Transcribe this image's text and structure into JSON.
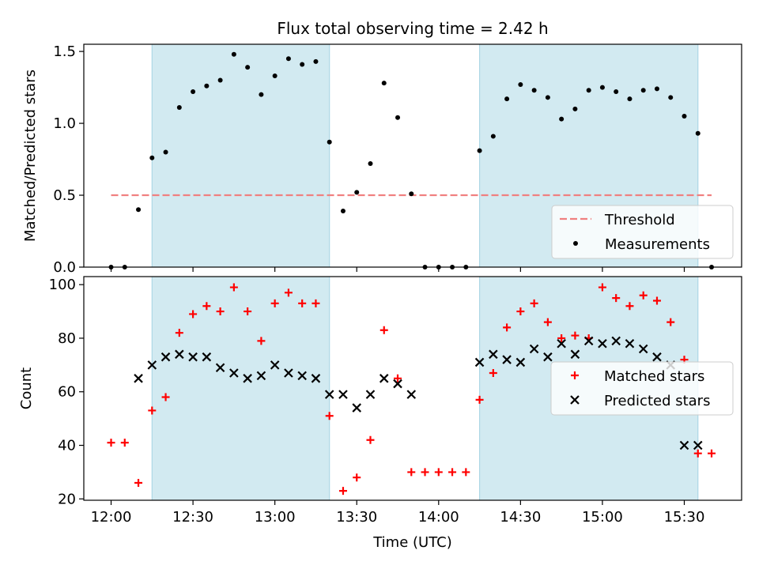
{
  "title": "Flux total observing time = 2.42 h",
  "colors": {
    "band": "#add8e6",
    "threshold": "#f08080",
    "matched": "#ff0000",
    "predicted": "#000000",
    "measurement": "#000000"
  },
  "chart_data": [
    {
      "type": "scatter",
      "name": "ratio-panel",
      "ylabel": "Matched/Predicted stars",
      "ylim": [
        0,
        1.55
      ],
      "xlim": [
        -10,
        231
      ],
      "yticks": [
        0.0,
        0.5,
        1.0,
        1.5
      ],
      "ytick_labels": [
        "0.0",
        "0.5",
        "1.0",
        "1.5"
      ],
      "observing_windows_minutes": [
        [
          15,
          80
        ],
        [
          135,
          215
        ]
      ],
      "threshold": {
        "value": 0.5,
        "x_range": [
          0,
          220
        ],
        "label": "Threshold"
      },
      "measurements": {
        "label": "Measurements",
        "x": [
          0,
          5,
          10,
          15,
          20,
          25,
          30,
          35,
          40,
          45,
          50,
          55,
          60,
          65,
          70,
          75,
          80,
          85,
          90,
          95,
          100,
          105,
          110,
          115,
          120,
          125,
          130,
          135,
          140,
          145,
          150,
          155,
          160,
          165,
          170,
          175,
          180,
          185,
          190,
          195,
          200,
          205,
          210,
          215,
          220
        ],
        "y": [
          0.0,
          0.0,
          0.4,
          0.76,
          0.8,
          1.11,
          1.22,
          1.26,
          1.3,
          1.48,
          1.39,
          1.2,
          1.33,
          1.45,
          1.41,
          1.43,
          0.87,
          0.39,
          0.52,
          0.72,
          1.28,
          1.04,
          0.51,
          0.0,
          0.0,
          0.0,
          0.0,
          0.81,
          0.91,
          1.17,
          1.27,
          1.23,
          1.18,
          1.03,
          1.1,
          1.23,
          1.25,
          1.22,
          1.17,
          1.23,
          1.24,
          1.18,
          1.05,
          0.93,
          0.0
        ]
      },
      "legend": {
        "placement": "lower-right",
        "entries": [
          "Threshold",
          "Measurements"
        ]
      }
    },
    {
      "type": "scatter",
      "name": "count-panel",
      "ylabel": "Count",
      "xlabel": "Time (UTC)",
      "ylim": [
        19.5,
        103
      ],
      "xlim": [
        -10,
        231
      ],
      "yticks": [
        20,
        40,
        60,
        80,
        100
      ],
      "ytick_labels": [
        "20",
        "40",
        "60",
        "80",
        "100"
      ],
      "xticks": [
        0,
        30,
        60,
        90,
        120,
        150,
        180,
        210
      ],
      "xtick_labels": [
        "12:00",
        "12:30",
        "13:00",
        "13:30",
        "14:00",
        "14:30",
        "15:00",
        "15:30"
      ],
      "observing_windows_minutes": [
        [
          15,
          80
        ],
        [
          135,
          215
        ]
      ],
      "series": [
        {
          "name": "Matched stars",
          "marker": "plus",
          "x": [
            0,
            5,
            10,
            15,
            20,
            25,
            30,
            35,
            40,
            45,
            50,
            55,
            60,
            65,
            70,
            75,
            80,
            85,
            90,
            95,
            100,
            105,
            110,
            115,
            120,
            125,
            130,
            135,
            140,
            145,
            150,
            155,
            160,
            165,
            170,
            175,
            180,
            185,
            190,
            195,
            200,
            205,
            210,
            215,
            220
          ],
          "y": [
            41,
            41,
            26,
            53,
            58,
            82,
            89,
            92,
            90,
            99,
            90,
            79,
            93,
            97,
            93,
            93,
            51,
            23,
            28,
            42,
            83,
            65,
            30,
            30,
            30,
            30,
            30,
            57,
            67,
            84,
            90,
            93,
            86,
            80,
            81,
            80,
            99,
            95,
            92,
            96,
            94,
            86,
            72,
            37,
            37
          ]
        },
        {
          "name": "Predicted stars",
          "marker": "x",
          "x": [
            10,
            15,
            20,
            25,
            30,
            35,
            40,
            45,
            50,
            55,
            60,
            65,
            70,
            75,
            80,
            85,
            90,
            95,
            100,
            105,
            110,
            135,
            140,
            145,
            150,
            155,
            160,
            165,
            170,
            175,
            180,
            185,
            190,
            195,
            200,
            205,
            210,
            215
          ],
          "y": [
            65,
            70,
            73,
            74,
            73,
            73,
            69,
            67,
            65,
            66,
            70,
            67,
            66,
            65,
            59,
            59,
            54,
            59,
            65,
            63,
            59,
            71,
            74,
            72,
            71,
            76,
            73,
            78,
            74,
            79,
            78,
            79,
            78,
            76,
            73,
            70,
            40,
            40
          ]
        }
      ],
      "legend": {
        "placement": "center-right",
        "entries": [
          "Matched stars",
          "Predicted stars"
        ]
      }
    }
  ]
}
